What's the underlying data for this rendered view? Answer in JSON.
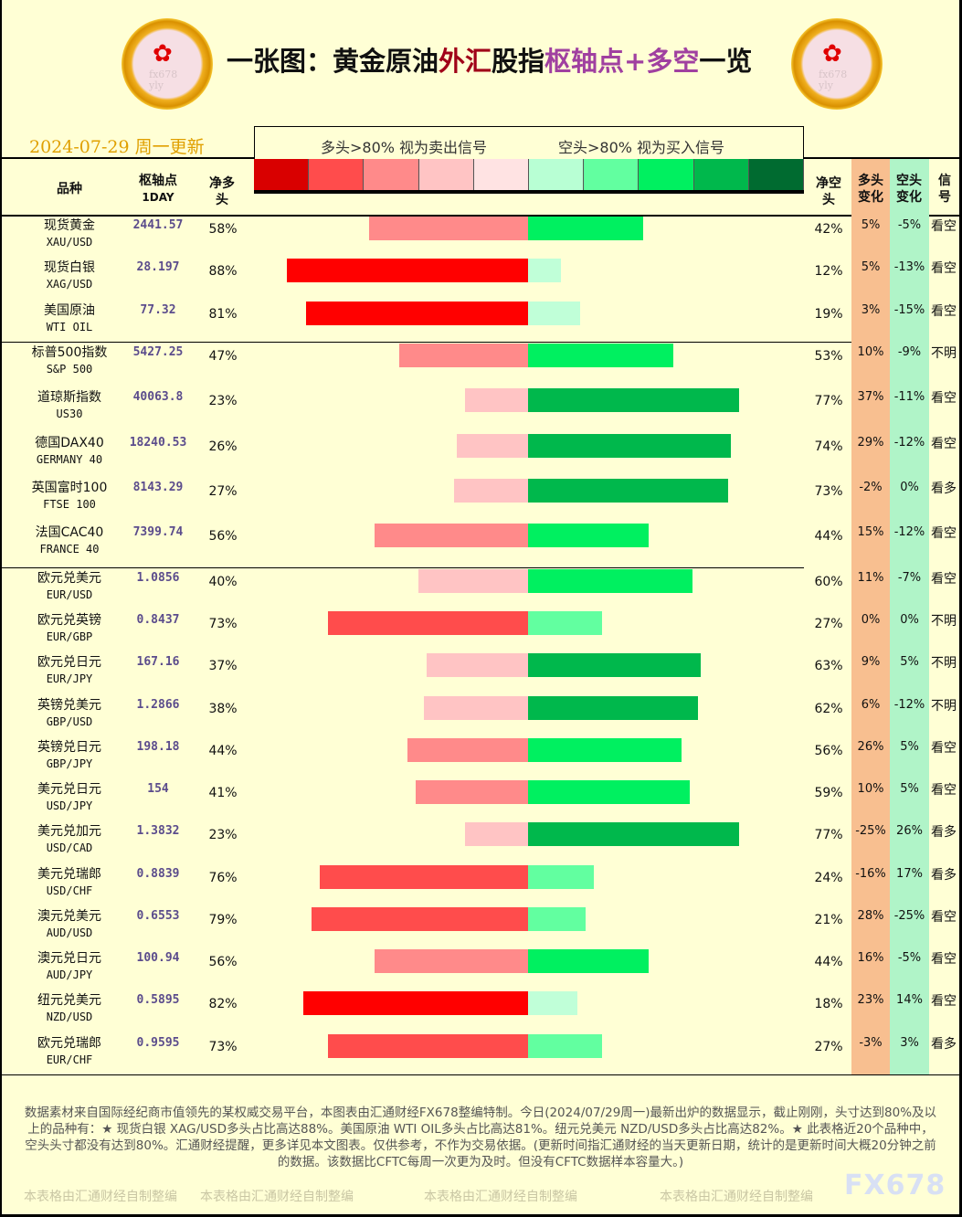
{
  "header": {
    "title_parts": [
      {
        "text": "一张图：黄金原油",
        "color": "#111111"
      },
      {
        "text": "外汇",
        "color": "#A00018"
      },
      {
        "text": "股指",
        "color": "#111111"
      },
      {
        "text": "枢轴点+多空",
        "color": "#A040A0"
      },
      {
        "text": "一览",
        "color": "#111111"
      }
    ],
    "date": "2024-07-29 周一更新",
    "logo_text": "fx678 yly"
  },
  "legend": {
    "long_note": "多头>80% 视为卖出信号",
    "short_note": "空头>80% 视为买入信号",
    "swatches": [
      "#D90000",
      "#FF4C4C",
      "#FF8A8A",
      "#FFC4C4",
      "#FFE3E3",
      "#B8FFD4",
      "#62FFA0",
      "#00F060",
      "#00B84C",
      "#006B30"
    ]
  },
  "columns": {
    "name": "品种",
    "pivot": "枢轴点",
    "pivot_period": "1DAY",
    "net_long": "净多头",
    "net_short": "净空头",
    "long_change": "多头变化",
    "short_change": "空头变化",
    "signal": "信号"
  },
  "chart_data": {
    "type": "bar",
    "orientation": "horizontal-diverging",
    "xlim": [
      0,
      100
    ],
    "groups": [
      {
        "rows": [
          {
            "name": "现货黄金",
            "code": "XAU/USD",
            "pivot": "2441.57",
            "long": 58,
            "short": 42,
            "long_change": "5%",
            "short_change": "-5%",
            "signal": "看空"
          },
          {
            "name": "现货白银",
            "code": "XAG/USD",
            "pivot": "28.197",
            "long": 88,
            "short": 12,
            "long_change": "5%",
            "short_change": "-13%",
            "signal": "看空"
          },
          {
            "name": "美国原油",
            "code": "WTI OIL",
            "pivot": "77.32",
            "long": 81,
            "short": 19,
            "long_change": "3%",
            "short_change": "-15%",
            "signal": "看空"
          }
        ]
      },
      {
        "rows": [
          {
            "name": "标普500指数",
            "code": "S&P 500",
            "pivot": "5427.25",
            "long": 47,
            "short": 53,
            "long_change": "10%",
            "short_change": "-9%",
            "signal": "不明"
          },
          {
            "name": "道琼斯指数",
            "code": "US30",
            "pivot": "40063.8",
            "long": 23,
            "short": 77,
            "long_change": "37%",
            "short_change": "-11%",
            "signal": "看空"
          },
          {
            "name": "德国DAX40",
            "code": "GERMANY 40",
            "pivot": "18240.53",
            "long": 26,
            "short": 74,
            "long_change": "29%",
            "short_change": "-12%",
            "signal": "看空"
          },
          {
            "name": "英国富时100",
            "code": "FTSE 100",
            "pivot": "8143.29",
            "long": 27,
            "short": 73,
            "long_change": "-2%",
            "short_change": "0%",
            "signal": "看多"
          },
          {
            "name": "法国CAC40",
            "code": "FRANCE 40",
            "pivot": "7399.74",
            "long": 56,
            "short": 44,
            "long_change": "15%",
            "short_change": "-12%",
            "signal": "看空"
          }
        ]
      },
      {
        "rows": [
          {
            "name": "欧元兑美元",
            "code": "EUR/USD",
            "pivot": "1.0856",
            "long": 40,
            "short": 60,
            "long_change": "11%",
            "short_change": "-7%",
            "signal": "看空"
          },
          {
            "name": "欧元兑英镑",
            "code": "EUR/GBP",
            "pivot": "0.8437",
            "long": 73,
            "short": 27,
            "long_change": "0%",
            "short_change": "0%",
            "signal": "不明"
          },
          {
            "name": "欧元兑日元",
            "code": "EUR/JPY",
            "pivot": "167.16",
            "long": 37,
            "short": 63,
            "long_change": "9%",
            "short_change": "5%",
            "signal": "不明"
          },
          {
            "name": "英镑兑美元",
            "code": "GBP/USD",
            "pivot": "1.2866",
            "long": 38,
            "short": 62,
            "long_change": "6%",
            "short_change": "-12%",
            "signal": "不明"
          },
          {
            "name": "英镑兑日元",
            "code": "GBP/JPY",
            "pivot": "198.18",
            "long": 44,
            "short": 56,
            "long_change": "26%",
            "short_change": "5%",
            "signal": "看空"
          },
          {
            "name": "美元兑日元",
            "code": "USD/JPY",
            "pivot": "154",
            "long": 41,
            "short": 59,
            "long_change": "10%",
            "short_change": "5%",
            "signal": "看空"
          },
          {
            "name": "美元兑加元",
            "code": "USD/CAD",
            "pivot": "1.3832",
            "long": 23,
            "short": 77,
            "long_change": "-25%",
            "short_change": "26%",
            "signal": "看多"
          },
          {
            "name": "美元兑瑞郎",
            "code": "USD/CHF",
            "pivot": "0.8839",
            "long": 76,
            "short": 24,
            "long_change": "-16%",
            "short_change": "17%",
            "signal": "看多"
          },
          {
            "name": "澳元兑美元",
            "code": "AUD/USD",
            "pivot": "0.6553",
            "long": 79,
            "short": 21,
            "long_change": "28%",
            "short_change": "-25%",
            "signal": "看空"
          },
          {
            "name": "澳元兑日元",
            "code": "AUD/JPY",
            "pivot": "100.94",
            "long": 56,
            "short": 44,
            "long_change": "16%",
            "short_change": "-5%",
            "signal": "看空"
          },
          {
            "name": "纽元兑美元",
            "code": "NZD/USD",
            "pivot": "0.5895",
            "long": 82,
            "short": 18,
            "long_change": "23%",
            "short_change": "14%",
            "signal": "看空"
          },
          {
            "name": "欧元兑瑞郎",
            "code": "EUR/CHF",
            "pivot": "0.9595",
            "long": 73,
            "short": 27,
            "long_change": "-3%",
            "short_change": "3%",
            "signal": "看多"
          }
        ]
      }
    ]
  },
  "footer": {
    "note": "数据素材来自国际经纪商市值领先的某权威交易平台，本图表由汇通财经FX678整编特制。今日(2024/07/29周一)最新出炉的数据显示，截止刚刚，头寸达到80%及以上的品种有：★ 现货白银 XAG/USD多头占比高达88%。美国原油 WTI OIL多头占比高达81%。纽元兑美元 NZD/USD多头占比高达82%。★ 此表格近20个品种中，空头头寸都没有达到80%。汇通财经提醒，更多详见本文图表。仅供参考，不作为交易依据。(更新时间指汇通财经的当天更新日期，统计的是更新时间大概20分钟之前的数据。该数据比CFTC每周一次更为及时。但没有CFTC数据样本容量大。)",
    "watermark": "本表格由汇通财经自制整编",
    "brand": "FX678"
  }
}
